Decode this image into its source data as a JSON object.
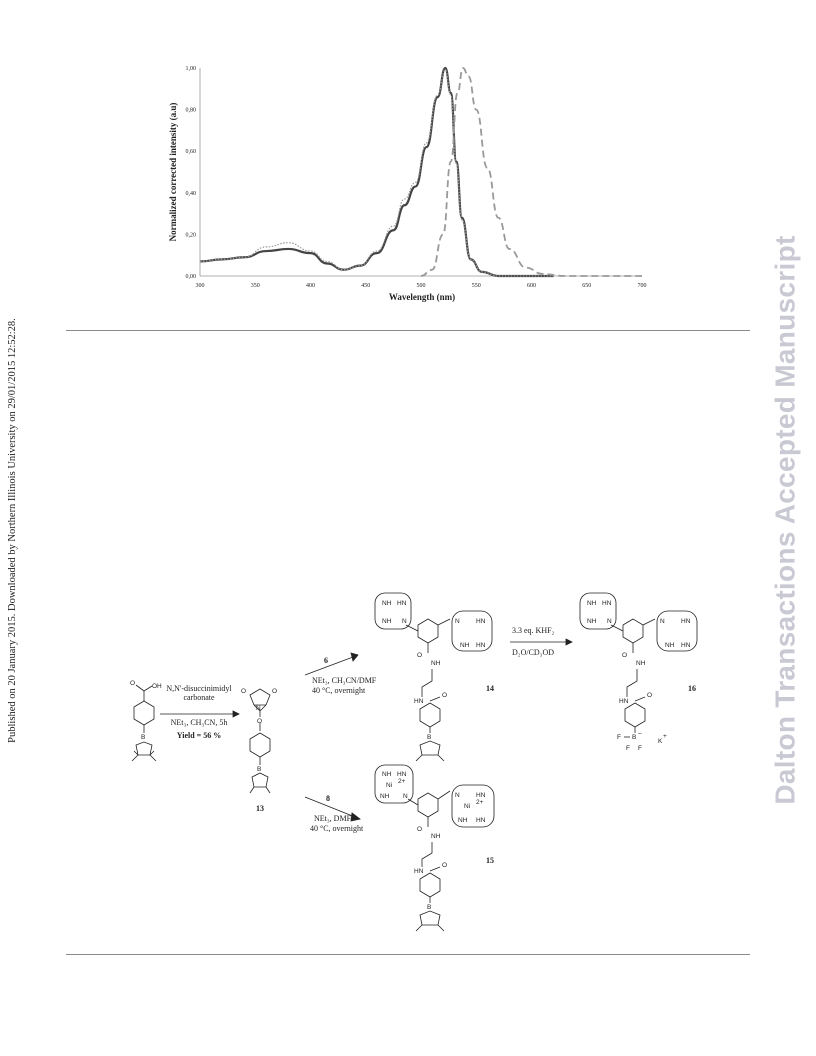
{
  "side_text": {
    "published": "Published on 20 January 2015. Downloaded by Northern Illinois University on 29/01/2015 12:52:28.",
    "journal": "Dalton Transactions Accepted Manuscript"
  },
  "chart_data": {
    "type": "line",
    "xlabel": "Wavelength (nm)",
    "ylabel": "Normalized corrected intensity (a.u)",
    "xlim": [
      300,
      700
    ],
    "ylim": [
      0,
      1.0
    ],
    "x_ticks": [
      "300",
      "350",
      "400",
      "450",
      "500",
      "550",
      "600",
      "650",
      "700"
    ],
    "y_ticks": [
      "0,00",
      "0,20",
      "0,40",
      "0,60",
      "0,80",
      "1,00"
    ],
    "grid": false,
    "series": [
      {
        "style": "solid",
        "x": [
          300,
          320,
          340,
          360,
          380,
          400,
          415,
          430,
          445,
          460,
          475,
          485,
          495,
          505,
          515,
          522,
          527,
          532,
          537,
          545,
          555,
          570,
          590,
          620
        ],
        "y": [
          0.07,
          0.08,
          0.09,
          0.12,
          0.13,
          0.11,
          0.06,
          0.03,
          0.05,
          0.11,
          0.22,
          0.34,
          0.43,
          0.62,
          0.86,
          1.0,
          0.88,
          0.55,
          0.28,
          0.08,
          0.02,
          0.0,
          0.0,
          0.0
        ]
      },
      {
        "style": "dotted",
        "x": [
          300,
          320,
          340,
          360,
          380,
          400,
          415,
          430,
          445,
          460,
          475,
          485,
          495,
          505,
          515,
          522,
          527,
          532,
          537,
          545,
          555,
          570,
          590,
          620
        ],
        "y": [
          0.07,
          0.08,
          0.09,
          0.14,
          0.16,
          0.12,
          0.07,
          0.03,
          0.05,
          0.12,
          0.24,
          0.37,
          0.45,
          0.64,
          0.87,
          0.99,
          0.87,
          0.54,
          0.27,
          0.08,
          0.02,
          0.0,
          0.0,
          0.0
        ]
      },
      {
        "style": "dashed",
        "x": [
          500,
          510,
          520,
          527,
          533,
          538,
          543,
          550,
          560,
          570,
          580,
          595,
          610,
          630,
          650,
          700
        ],
        "y": [
          0.0,
          0.03,
          0.2,
          0.55,
          0.88,
          1.0,
          0.96,
          0.8,
          0.52,
          0.28,
          0.13,
          0.04,
          0.01,
          0.0,
          0.0,
          0.0
        ]
      }
    ]
  },
  "scheme": {
    "reagents_step1": [
      "N,N'-disuccinimidyl",
      "carbonate",
      "NEt₃, CH₃CN, 5h"
    ],
    "yield": "Yield = 56 %",
    "compound_13": "13",
    "reagent_6": "6",
    "conditions_6": [
      "NEt₃, CH₃CN/DMF",
      "40 °C, overnight"
    ],
    "compound_14": "14",
    "reagent_8": "8",
    "conditions_8": [
      "NEt₃, DMF",
      "40 °C, overnight"
    ],
    "compound_15": "15",
    "conditions_16": [
      "3.3 eq. KHF₂",
      "D₂O/CD₃OD"
    ],
    "compound_16": "16",
    "atoms": {
      "OH": "OH",
      "O": "O",
      "B": "B",
      "N": "N",
      "NH": "NH",
      "HN": "HN",
      "Ni": "Ni",
      "charge": "2+",
      "F": "F",
      "K": "K",
      "plus": "+",
      "minus": "–"
    }
  }
}
